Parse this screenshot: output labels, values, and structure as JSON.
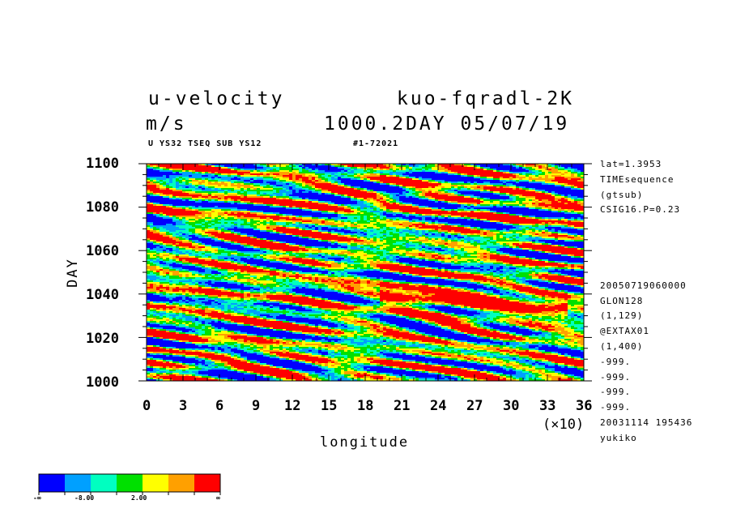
{
  "header": {
    "title_left": "u-velocity",
    "title_right": "kuo-fqradl-2K",
    "units": "m/s",
    "time_stamp": "1000.2DAY 05/07/19",
    "sub_left": "U YS32 TSEQ SUB YS12",
    "sub_right": "#1-72021"
  },
  "side_info": {
    "top": [
      "lat=1.3953",
      "TIMEsequence",
      "(gtsub)",
      "CSIG16.P=0.23"
    ],
    "bottom": [
      "20050719060000",
      "GLON128",
      "(1,129)",
      "@EXTAX01",
      "(1,400)",
      "-999.",
      "-999.",
      "-999.",
      "-999.",
      "20031114 195436",
      "yukiko"
    ]
  },
  "colorbar": {
    "colors": [
      "#0000ff",
      "#00a0ff",
      "#00ffc0",
      "#00e000",
      "#ffff00",
      "#ffa000",
      "#ff0000"
    ],
    "labels": [
      "-∞",
      "-8.00",
      "2.00",
      "∞"
    ]
  },
  "chart_data": {
    "type": "heatmap",
    "xlabel": "longitude",
    "ylabel": "DAY",
    "x_multiplier_label": "(×10)",
    "xlim": [
      0,
      36
    ],
    "ylim": [
      1000,
      1100
    ],
    "x_ticks": [
      "0",
      "3",
      "6",
      "9",
      "12",
      "15",
      "18",
      "21",
      "24",
      "27",
      "30",
      "33",
      "36"
    ],
    "y_ticks": [
      "1000",
      "1020",
      "1040",
      "1060",
      "1080",
      "1100"
    ],
    "x_tick_values": [
      0,
      3,
      6,
      9,
      12,
      15,
      18,
      21,
      24,
      27,
      30,
      33,
      36
    ],
    "y_tick_values": [
      1000,
      1020,
      1040,
      1060,
      1080,
      1100
    ],
    "color_levels": [
      "-∞",
      "-8.00",
      "2.00",
      "∞"
    ],
    "pattern": "westward-tilted streaks of alternating strong easterly (blue) and westerly (red) anomalies; strong red band from lon 20 to 34 near day 1030-1045"
  }
}
